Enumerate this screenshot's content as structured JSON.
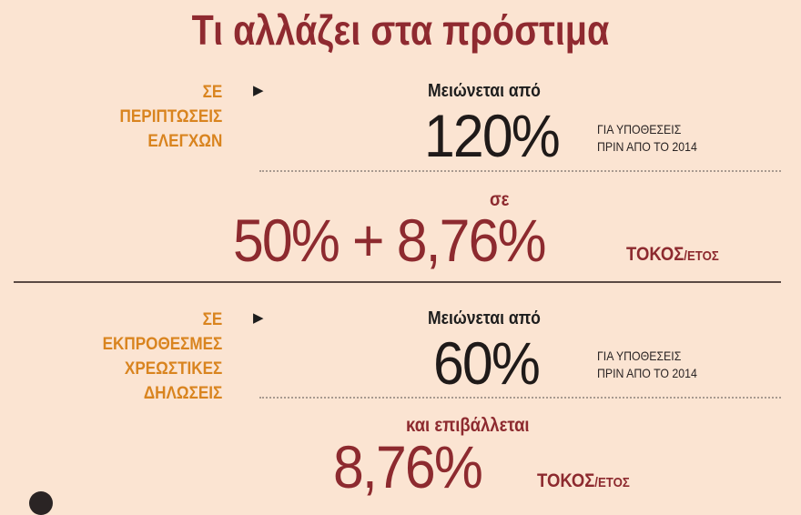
{
  "title": "Τι αλλάζει στα πρόστιμα",
  "sections": [
    {
      "category": [
        "ΣΕ",
        "ΠΕΡΙΠΤΩΣΕΙΣ",
        "ΕΛΕΓΧΩΝ"
      ],
      "lead": "Μειώνεται από",
      "from_value": "120%",
      "note": [
        "ΓΙΑ ΥΠΟΘΕΣΕΙΣ",
        "ΠΡΙΝ ΑΠΟ ΤΟ 2014"
      ],
      "connector": "σε",
      "to_value": "50% + 8,76%",
      "interest_label": "ΤΟΚΟΣ",
      "interest_unit": "/ΕΤΟΣ"
    },
    {
      "category": [
        "ΣΕ",
        "ΕΚΠΡΟΘΕΣΜΕΣ",
        "ΧΡΕΩΣΤΙΚΕΣ",
        "ΔΗΛΩΣΕΙΣ"
      ],
      "lead": "Μειώνεται από",
      "from_value": "60%",
      "note": [
        "ΓΙΑ ΥΠΟΘΕΣΕΙΣ",
        "ΠΡΙΝ ΑΠΟ ΤΟ 2014"
      ],
      "connector": "και επιβάλλεται",
      "to_value": "8,76%",
      "interest_label": "ΤΟΚΟΣ",
      "interest_unit": "/ΕΤΟΣ"
    }
  ],
  "icons": {
    "arrow": "triangle-right-icon"
  },
  "colors": {
    "background": "#fbe4d2",
    "title": "#8f2a30",
    "category": "#d9841f",
    "accent": "#8d2a2f"
  }
}
